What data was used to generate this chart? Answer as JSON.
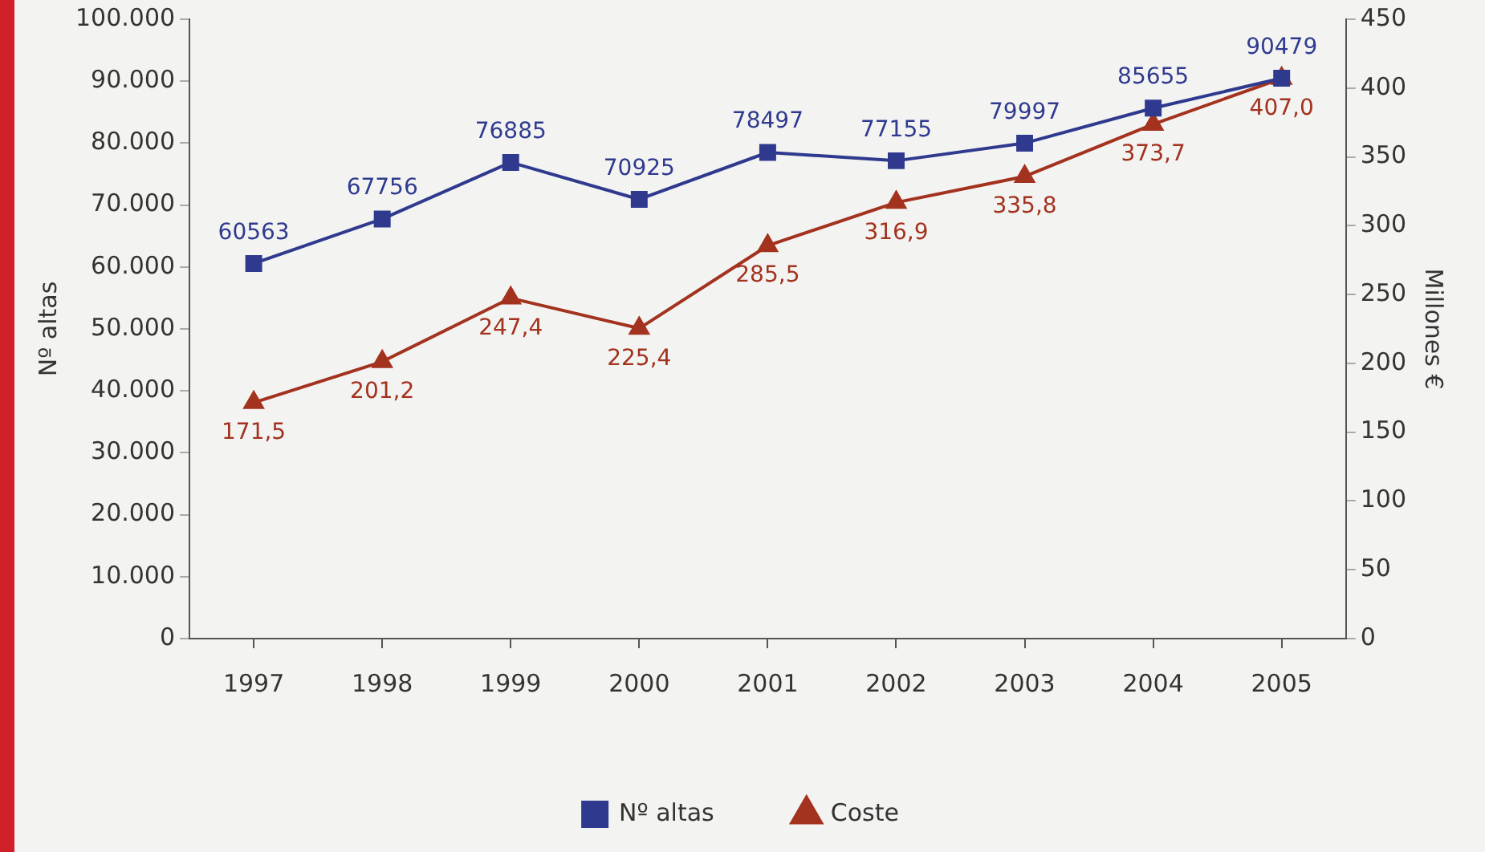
{
  "chart_data": {
    "type": "line",
    "ylabel": "Nº altas",
    "y2label": "Millones €",
    "categories": [
      "1997",
      "1998",
      "1999",
      "2000",
      "2001",
      "2002",
      "2003",
      "2004",
      "2005"
    ],
    "series": [
      {
        "name": "Nº altas",
        "color": "#2f3a8f",
        "marker": "square",
        "values": [
          60563,
          67756,
          76885,
          70925,
          78497,
          77155,
          79997,
          85655,
          90479
        ],
        "value_labels": [
          "60563",
          "67756",
          "76885",
          "70925",
          "78497",
          "77155",
          "79997",
          "85655",
          "90479"
        ]
      },
      {
        "name": "Coste",
        "color": "#a3321f",
        "marker": "triangle",
        "axis": "y2",
        "values": [
          171.5,
          201.2,
          247.4,
          225.4,
          285.5,
          316.9,
          335.8,
          373.7,
          407.0
        ],
        "value_labels": [
          "171,5",
          "201,2",
          "247,4",
          "225,4",
          "285,5",
          "316,9",
          "335,8",
          "373,7",
          "407,0"
        ]
      }
    ],
    "ylim": [
      0,
      100000
    ],
    "yticks": [
      {
        "value": 0,
        "label": "0"
      },
      {
        "value": 10000,
        "label": "10.000"
      },
      {
        "value": 20000,
        "label": "20.000"
      },
      {
        "value": 30000,
        "label": "30.000"
      },
      {
        "value": 40000,
        "label": "40.000"
      },
      {
        "value": 50000,
        "label": "50.000"
      },
      {
        "value": 60000,
        "label": "60.000"
      },
      {
        "value": 70000,
        "label": "70.000"
      },
      {
        "value": 80000,
        "label": "80.000"
      },
      {
        "value": 90000,
        "label": "90.000"
      },
      {
        "value": 100000,
        "label": "100.000"
      }
    ],
    "y2lim": [
      0,
      450
    ],
    "y2ticks": [
      0,
      50,
      100,
      150,
      200,
      250,
      300,
      350,
      400,
      450
    ],
    "grid": false,
    "legend": "bottom",
    "line_style": "solid"
  }
}
